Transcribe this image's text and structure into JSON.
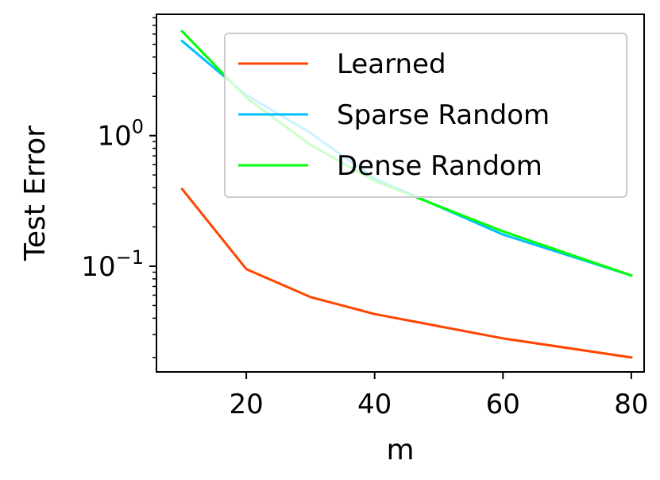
{
  "chart_data": {
    "type": "line",
    "xlabel": "m",
    "ylabel": "Test Error",
    "yscale": "log",
    "xlim": [
      6,
      82
    ],
    "ylim": [
      0.0155,
      8.5
    ],
    "grid": false,
    "legend_position": "top-right",
    "x_ticks": [
      20,
      40,
      60,
      80
    ],
    "x_tick_labels": [
      "20",
      "40",
      "60",
      "80"
    ],
    "y_major_ticks": [
      0.1,
      1
    ],
    "y_tick_labels": [
      {
        "base": "10",
        "exp": "−1"
      },
      {
        "base": "10",
        "exp": "0"
      }
    ],
    "series": [
      {
        "name": "Learned",
        "color": "#ff4500",
        "x": [
          10,
          20,
          30,
          40,
          60,
          80
        ],
        "y": [
          0.39,
          0.095,
          0.058,
          0.043,
          0.028,
          0.02
        ]
      },
      {
        "name": "Sparse Random",
        "color": "#00bfff",
        "x": [
          10,
          20,
          30,
          40,
          60,
          80
        ],
        "y": [
          5.3,
          2.05,
          1.05,
          0.47,
          0.175,
          0.085
        ]
      },
      {
        "name": "Dense Random",
        "color": "#00ff00",
        "x": [
          10,
          20,
          30,
          40,
          60,
          80
        ],
        "y": [
          6.3,
          1.95,
          0.85,
          0.45,
          0.185,
          0.085
        ]
      }
    ]
  }
}
